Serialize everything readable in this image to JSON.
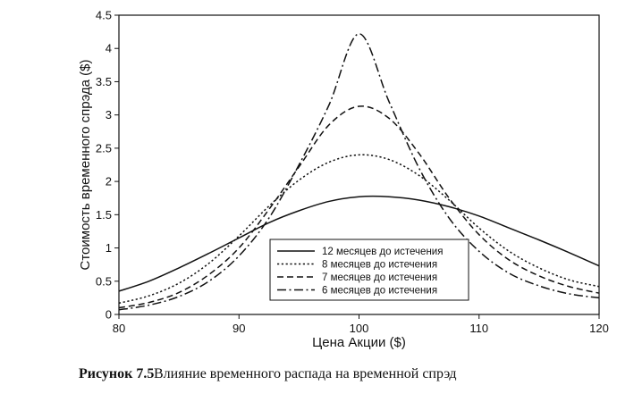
{
  "chart_data": {
    "type": "line",
    "xlabel": "Цена Акции ($)",
    "ylabel": "Стоимость временного спрэда ($)",
    "xlim": [
      80,
      120
    ],
    "ylim": [
      0,
      4.5
    ],
    "x_ticks": [
      "80",
      "90",
      "100",
      "110",
      "120"
    ],
    "y_ticks": [
      "0",
      "0.5",
      "1",
      "1.5",
      "2",
      "2.5",
      "3",
      "3.5",
      "4",
      "4.5"
    ],
    "grid": false,
    "legend_position": "bottom-center",
    "series": [
      {
        "name": "12 месяцев до истечения",
        "dash": "solid",
        "x": [
          80,
          82.5,
          85,
          87.5,
          90,
          92.5,
          95,
          97.5,
          100,
          102.5,
          105,
          107.5,
          110,
          112.5,
          115,
          117.5,
          120
        ],
        "y": [
          0.35,
          0.5,
          0.7,
          0.92,
          1.15,
          1.38,
          1.56,
          1.7,
          1.77,
          1.77,
          1.72,
          1.62,
          1.48,
          1.3,
          1.12,
          0.93,
          0.73
        ]
      },
      {
        "name": "8 месяцев до истечения",
        "dash": "dotted",
        "x": [
          80,
          82.5,
          85,
          87.5,
          90,
          92.5,
          95,
          97.5,
          100,
          102.5,
          105,
          107.5,
          110,
          112.5,
          115,
          117.5,
          120
        ],
        "y": [
          0.17,
          0.28,
          0.47,
          0.77,
          1.18,
          1.63,
          2.02,
          2.29,
          2.4,
          2.33,
          2.09,
          1.72,
          1.3,
          0.95,
          0.7,
          0.52,
          0.42
        ]
      },
      {
        "name": "7 месяцев до истечения",
        "dash": "dashed",
        "x": [
          80,
          82.5,
          85,
          87.5,
          90,
          92.5,
          95,
          97.5,
          100,
          102.5,
          105,
          107.5,
          110,
          112.5,
          115,
          117.5,
          120
        ],
        "y": [
          0.1,
          0.18,
          0.33,
          0.6,
          1.0,
          1.58,
          2.22,
          2.85,
          3.13,
          2.95,
          2.42,
          1.75,
          1.2,
          0.82,
          0.58,
          0.42,
          0.32
        ]
      },
      {
        "name": "6 месяцев до истечения",
        "dash": "dashdot",
        "x": [
          80,
          82.5,
          85,
          87.5,
          90,
          92.5,
          95,
          97.5,
          100,
          102.5,
          105,
          107.5,
          110,
          112.5,
          115,
          117.5,
          120
        ],
        "y": [
          0.07,
          0.14,
          0.27,
          0.5,
          0.88,
          1.45,
          2.25,
          3.15,
          4.22,
          3.2,
          2.2,
          1.45,
          0.95,
          0.62,
          0.43,
          0.31,
          0.25
        ]
      }
    ]
  },
  "caption": {
    "label": "Рисунок 7.5",
    "text": "Влияние временного распада на временной спрэд"
  }
}
